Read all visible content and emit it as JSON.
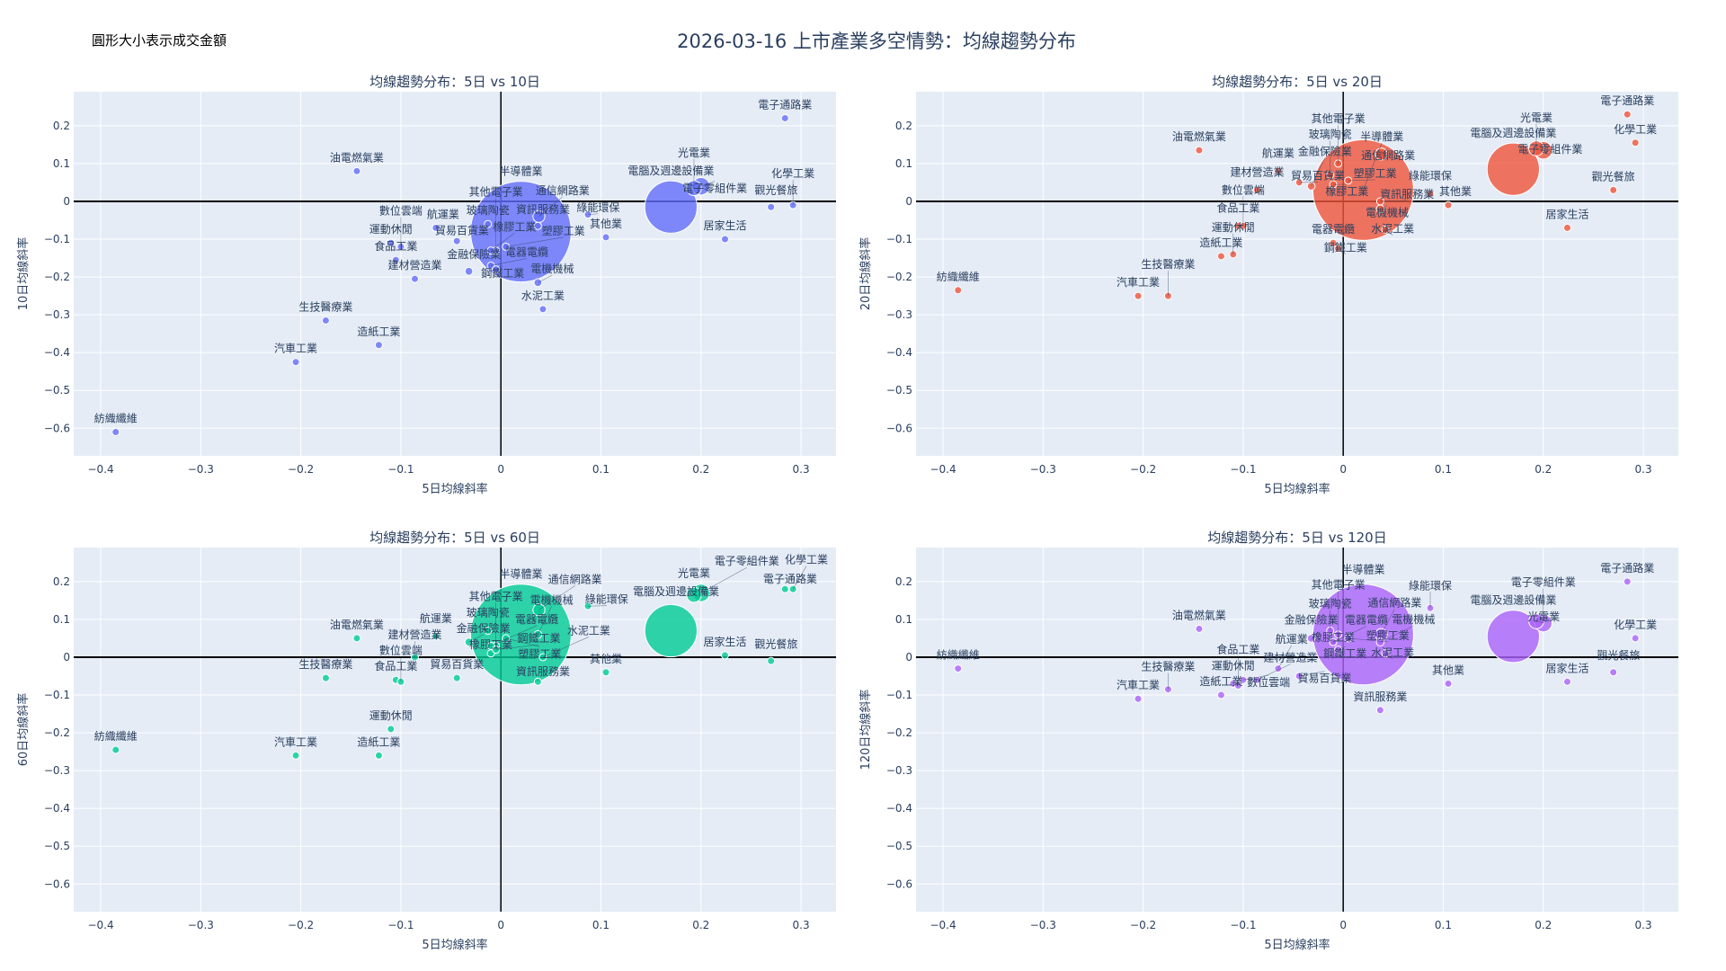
{
  "title": "2026-03-16 上市產業多空情勢：均線趨勢分布",
  "annotation": "圓形大小表示成交金額",
  "chart_data": {
    "type": "scatter",
    "size_meaning": "成交金額 (relative)",
    "xlabel": "5日均線斜率",
    "xlim": [
      -0.427,
      0.335
    ],
    "ylim": [
      -0.673,
      0.29
    ],
    "xticks": [
      -0.4,
      -0.3,
      -0.2,
      -0.1,
      0,
      0.1,
      0.2,
      0.3
    ],
    "xtick_labels": [
      "−0.4",
      "−0.3",
      "−0.2",
      "−0.1",
      "0",
      "0.1",
      "0.2",
      "0.3"
    ],
    "yticks": [
      0.2,
      0.1,
      0,
      -0.1,
      -0.2,
      -0.3,
      -0.4,
      -0.5,
      -0.6
    ],
    "ytick_labels": [
      "0.2",
      "0.1",
      "0",
      "−0.1",
      "−0.2",
      "−0.3",
      "−0.4",
      "−0.5",
      "−0.6"
    ],
    "industries": [
      {
        "name": "紡織纖維",
        "x": -0.385,
        "size": 0.4
      },
      {
        "name": "汽車工業",
        "x": -0.205,
        "size": 0.4
      },
      {
        "name": "生技醫療業",
        "x": -0.175,
        "size": 0.4
      },
      {
        "name": "油電燃氣業",
        "x": -0.144,
        "size": 0.4
      },
      {
        "name": "造紙工業",
        "x": -0.122,
        "size": 0.4
      },
      {
        "name": "運動休閒",
        "x": -0.11,
        "size": 0.4
      },
      {
        "name": "食品工業",
        "x": -0.105,
        "size": 0.4
      },
      {
        "name": "數位雲端",
        "x": -0.1,
        "size": 0.4
      },
      {
        "name": "建材營造業",
        "x": -0.086,
        "size": 0.4
      },
      {
        "name": "航運業",
        "x": -0.065,
        "size": 0.5
      },
      {
        "name": "貿易百貨業",
        "x": -0.044,
        "size": 0.4
      },
      {
        "name": "金融保險業",
        "x": -0.032,
        "size": 0.6
      },
      {
        "name": "玻璃陶瓷",
        "x": -0.013,
        "size": 0.4
      },
      {
        "name": "橡膠工業",
        "x": -0.01,
        "size": 0.4
      },
      {
        "name": "電器電纜",
        "x": -0.01,
        "size": 0.4
      },
      {
        "name": "鋼鐵工業",
        "x": -0.005,
        "size": 0.4
      },
      {
        "name": "其他電子業",
        "x": -0.005,
        "size": 0.5
      },
      {
        "name": "塑膠工業",
        "x": 0.005,
        "size": 0.5
      },
      {
        "name": "半導體業",
        "x": 0.02,
        "size": 100
      },
      {
        "name": "資訊服務業",
        "x": 0.037,
        "size": 0.4
      },
      {
        "name": "電機機械",
        "x": 0.037,
        "size": 0.6
      },
      {
        "name": "通信網路業",
        "x": 0.038,
        "size": 1.4
      },
      {
        "name": "水泥工業",
        "x": 0.042,
        "size": 0.4
      },
      {
        "name": "綠能環保",
        "x": 0.087,
        "size": 0.4
      },
      {
        "name": "其他業",
        "x": 0.105,
        "size": 0.4
      },
      {
        "name": "電腦及週邊設備業",
        "x": 0.17,
        "size": 27
      },
      {
        "name": "光電業",
        "x": 0.193,
        "size": 2.2
      },
      {
        "name": "電子零組件業",
        "x": 0.2,
        "size": 3
      },
      {
        "name": "居家生活",
        "x": 0.224,
        "size": 0.4
      },
      {
        "name": "觀光餐旅",
        "x": 0.27,
        "size": 0.4
      },
      {
        "name": "電子通路業",
        "x": 0.284,
        "size": 0.4
      },
      {
        "name": "化學工業",
        "x": 0.292,
        "size": 0.4
      }
    ],
    "panels": [
      {
        "title": "均線趨勢分布：5日 vs 10日",
        "ylabel": "10日均線斜率",
        "color": "#636efa",
        "y": [
          -0.61,
          -0.425,
          -0.315,
          0.08,
          -0.38,
          -0.11,
          -0.155,
          -0.12,
          -0.205,
          -0.07,
          -0.105,
          -0.185,
          -0.06,
          -0.13,
          -0.17,
          -0.18,
          -0.13,
          -0.12,
          -0.08,
          -0.065,
          -0.215,
          -0.04,
          -0.285,
          -0.035,
          -0.095,
          -0.015,
          0.035,
          0.04,
          -0.1,
          -0.015,
          0.22,
          -0.01
        ]
      },
      {
        "title": "均線趨勢分布：5日 vs 20日",
        "ylabel": "20日均線斜率",
        "color": "#ef553b",
        "y": [
          -0.235,
          -0.25,
          -0.25,
          0.135,
          -0.145,
          -0.14,
          -0.065,
          -0.065,
          0.03,
          0.08,
          0.05,
          0.04,
          0.07,
          0.045,
          -0.11,
          -0.125,
          0.1,
          0.055,
          0.03,
          0.0,
          -0.02,
          0.125,
          -0.075,
          0.02,
          -0.01,
          0.085,
          0.14,
          0.135,
          -0.07,
          0.03,
          0.23,
          0.155
        ]
      },
      {
        "title": "均線趨勢分布：5日 vs 60日",
        "ylabel": "60日均線斜率",
        "color": "#00cc96",
        "y": [
          -0.245,
          -0.26,
          -0.055,
          0.05,
          -0.26,
          -0.19,
          -0.06,
          -0.065,
          0.0,
          0.055,
          -0.055,
          0.04,
          0.07,
          0.01,
          0.03,
          0.02,
          0.03,
          0.05,
          0.06,
          -0.065,
          0.06,
          0.125,
          0.0,
          0.135,
          -0.04,
          0.07,
          0.165,
          0.17,
          0.005,
          -0.01,
          0.18,
          0.18
        ]
      },
      {
        "title": "均線趨勢分布：5日 vs 120日",
        "ylabel": "120日均線斜率",
        "color": "#ab63fa",
        "y": [
          -0.03,
          -0.11,
          -0.085,
          0.075,
          -0.1,
          -0.07,
          -0.075,
          -0.06,
          -0.06,
          -0.03,
          -0.05,
          0.05,
          0.07,
          0.04,
          0.04,
          0.02,
          0.06,
          0.05,
          0.06,
          -0.14,
          0.04,
          0.06,
          0.01,
          0.13,
          -0.07,
          0.055,
          0.095,
          0.09,
          -0.065,
          -0.04,
          0.2,
          0.05
        ]
      }
    ]
  }
}
